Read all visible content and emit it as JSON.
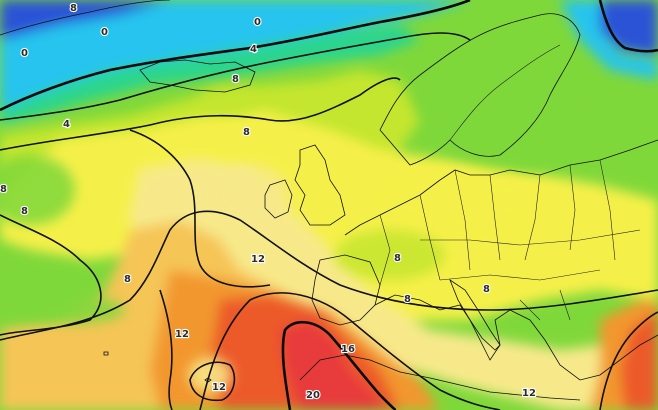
{
  "colors": {
    "deep_cold": "#2a52d6",
    "cold": "#25c4ee",
    "cool": "#2ad58e",
    "mild_green": "#7fd83a",
    "lime": "#c4e62e",
    "yellow": "#f5f04a",
    "pale_yellow": "#f7e98a",
    "light_orange": "#f5c556",
    "orange": "#f2972e",
    "red_orange": "#ec5a2a",
    "red": "#e83a3a"
  },
  "labels": [
    {
      "id": "lbl-8-topleft",
      "text": "8"
    },
    {
      "id": "lbl-0-top",
      "text": "0"
    },
    {
      "id": "lbl-0-arctic",
      "text": "0"
    },
    {
      "id": "lbl-0-left",
      "text": "0"
    },
    {
      "id": "lbl-4-greenland",
      "text": "4"
    },
    {
      "id": "lbl-8-iceland",
      "text": "8"
    },
    {
      "id": "lbl-4-west",
      "text": "4"
    },
    {
      "id": "lbl-8-faroe",
      "text": "8"
    },
    {
      "id": "lbl-8-atlantic-west",
      "text": "8"
    },
    {
      "id": "lbl-8-edge",
      "text": "8"
    },
    {
      "id": "lbl-8-midatl",
      "text": "8"
    },
    {
      "id": "lbl-12-biscay",
      "text": "12"
    },
    {
      "id": "lbl-12-azores",
      "text": "12"
    },
    {
      "id": "lbl-12-south",
      "text": "12"
    },
    {
      "id": "lbl-16-iberia",
      "text": "16"
    },
    {
      "id": "lbl-20-morocco",
      "text": "20"
    },
    {
      "id": "lbl-8-alps",
      "text": "8"
    },
    {
      "id": "lbl-8-med",
      "text": "8"
    },
    {
      "id": "lbl-8-balkans",
      "text": "8"
    },
    {
      "id": "lbl-12-greece",
      "text": "12"
    }
  ]
}
